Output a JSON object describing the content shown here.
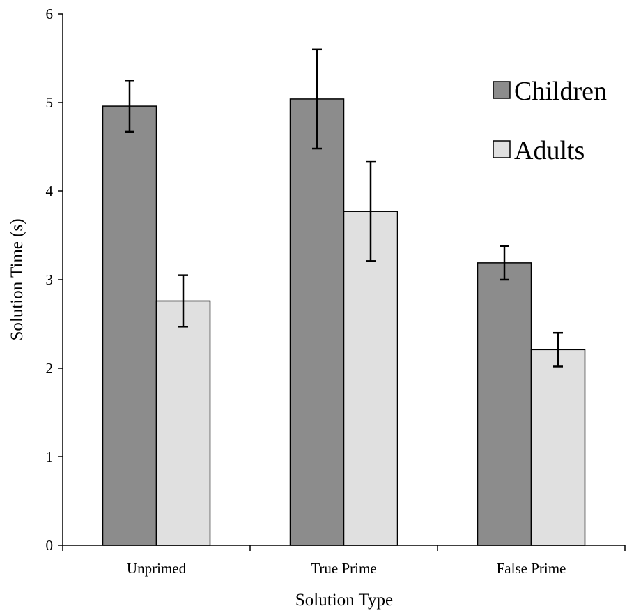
{
  "chart_data": {
    "type": "bar",
    "title": "",
    "xlabel": "Solution Type",
    "ylabel": "Solution Time (s)",
    "ylim": [
      0,
      6
    ],
    "yticks": [
      0,
      1,
      2,
      3,
      4,
      5,
      6
    ],
    "categories": [
      "Unprimed",
      "True Prime",
      "False Prime"
    ],
    "series": [
      {
        "name": "Children",
        "color": "#8c8c8c",
        "values": [
          4.96,
          5.04,
          3.19
        ],
        "error": [
          0.29,
          0.56,
          0.19
        ]
      },
      {
        "name": "Adults",
        "color": "#e0e0e0",
        "values": [
          2.76,
          3.77,
          2.21
        ],
        "error": [
          0.29,
          0.56,
          0.19
        ]
      }
    ],
    "legend_position": "top-right",
    "grid": false
  }
}
